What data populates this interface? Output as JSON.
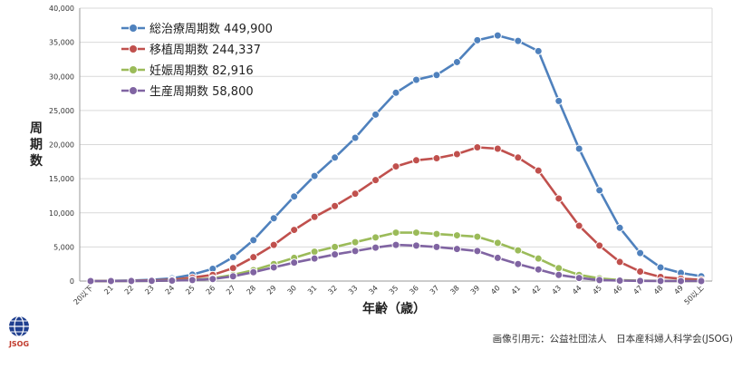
{
  "chart_data": {
    "type": "line",
    "xlabel": "年齢（歳）",
    "ylabel": "周期数",
    "ylim": [
      0,
      40000
    ],
    "yticks": [
      "0",
      "5,000",
      "10,000",
      "15,000",
      "20,000",
      "25,000",
      "30,000",
      "35,000",
      "40,000"
    ],
    "categories": [
      "20以下",
      "21",
      "22",
      "23",
      "24",
      "25",
      "26",
      "27",
      "28",
      "29",
      "30",
      "31",
      "32",
      "33",
      "34",
      "35",
      "36",
      "37",
      "38",
      "39",
      "40",
      "41",
      "42",
      "43",
      "44",
      "45",
      "46",
      "47",
      "48",
      "49",
      "50以上"
    ],
    "grid": true,
    "legend_position": "top-left",
    "series": [
      {
        "name": "総治療周期数 449,900",
        "color": "#4f81bd",
        "values": [
          0,
          30,
          80,
          180,
          400,
          950,
          1800,
          3500,
          6000,
          9200,
          12400,
          15400,
          18100,
          21000,
          24400,
          27600,
          29500,
          30200,
          32100,
          35300,
          36000,
          35200,
          33700,
          26400,
          19400,
          13300,
          7800,
          4100,
          2000,
          1200,
          700
        ]
      },
      {
        "name": "移植周期数 244,337",
        "color": "#c0504d",
        "values": [
          0,
          15,
          40,
          90,
          200,
          500,
          900,
          1900,
          3500,
          5300,
          7500,
          9400,
          11000,
          12800,
          14800,
          16800,
          17700,
          18000,
          18600,
          19600,
          19400,
          18100,
          16200,
          12100,
          8100,
          5200,
          2800,
          1400,
          600,
          350,
          200
        ]
      },
      {
        "name": "妊娠周期数 82,916",
        "color": "#9bbb59",
        "values": [
          0,
          5,
          15,
          30,
          80,
          200,
          400,
          900,
          1600,
          2500,
          3400,
          4300,
          5000,
          5700,
          6400,
          7100,
          7100,
          6900,
          6700,
          6500,
          5600,
          4500,
          3300,
          1900,
          900,
          400,
          150,
          60,
          30,
          15,
          5
        ]
      },
      {
        "name": "生産周期数 58,800",
        "color": "#8064a2",
        "values": [
          0,
          5,
          10,
          25,
          60,
          150,
          300,
          700,
          1300,
          2000,
          2700,
          3300,
          3900,
          4400,
          4900,
          5300,
          5200,
          5000,
          4700,
          4400,
          3400,
          2500,
          1700,
          900,
          450,
          150,
          60,
          20,
          10,
          5,
          3
        ]
      }
    ]
  },
  "source_text": "画像引用元：公益社団法人　日本産科婦人科学会(JSOG)",
  "logo_text": "JSOG"
}
